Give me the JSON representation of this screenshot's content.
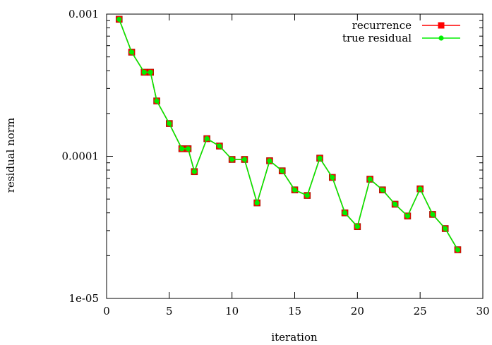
{
  "chart_data": {
    "type": "line",
    "xlabel": "iteration",
    "ylabel": "residual norm",
    "xlim": [
      0,
      30
    ],
    "ylim": [
      1e-05,
      0.001
    ],
    "yscale": "log",
    "xticks": [
      0,
      5,
      10,
      15,
      20,
      25,
      30
    ],
    "yticks": [
      {
        "value": 0.001,
        "label": "0.001"
      },
      {
        "value": 0.0001,
        "label": "0.0001"
      },
      {
        "value": 1e-05,
        "label": "1e-05"
      }
    ],
    "grid": false,
    "legend_position": "top-right",
    "x": [
      1,
      2,
      3,
      3.5,
      4,
      5,
      6,
      6.5,
      7,
      8,
      9,
      10,
      11,
      12,
      13,
      14,
      15,
      16,
      17,
      18,
      19,
      20,
      21,
      22,
      23,
      24,
      25,
      26,
      27,
      28
    ],
    "series": [
      {
        "name": "recurrence",
        "color": "#ff0000",
        "marker": "square",
        "values": [
          0.00092,
          0.00054,
          0.00039,
          0.00039,
          0.000245,
          0.00017,
          0.000113,
          0.000113,
          7.8e-05,
          0.000133,
          0.000118,
          9.5e-05,
          9.5e-05,
          4.7e-05,
          9.3e-05,
          7.9e-05,
          5.8e-05,
          5.3e-05,
          9.7e-05,
          7.1e-05,
          4e-05,
          3.2e-05,
          6.9e-05,
          5.8e-05,
          4.6e-05,
          3.8e-05,
          5.9e-05,
          3.9e-05,
          3.1e-05,
          2.2e-05
        ]
      },
      {
        "name": "true residual",
        "color": "#00ee00",
        "marker": "circle",
        "values": [
          0.00092,
          0.00054,
          0.00039,
          0.00039,
          0.000245,
          0.00017,
          0.000113,
          0.000113,
          7.8e-05,
          0.000133,
          0.000118,
          9.5e-05,
          9.5e-05,
          4.7e-05,
          9.3e-05,
          7.9e-05,
          5.8e-05,
          5.3e-05,
          9.7e-05,
          7.1e-05,
          4e-05,
          3.2e-05,
          6.9e-05,
          5.8e-05,
          4.6e-05,
          3.8e-05,
          5.9e-05,
          3.9e-05,
          3.1e-05,
          2.2e-05
        ]
      }
    ]
  }
}
